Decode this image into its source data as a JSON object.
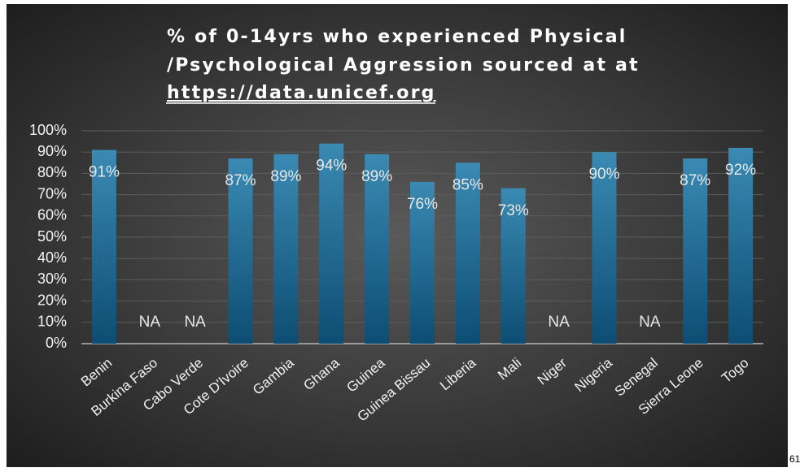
{
  "chart_data": {
    "type": "bar",
    "title": [
      "% of 0-14yrs who experienced Physical",
      "/Psychological Aggression sourced at at",
      "https://data.unicef.org"
    ],
    "categories": [
      "Benin",
      "Burkina Faso",
      "Cabo Verde",
      "Cote D'Ivoire",
      "Gambia",
      "Ghana",
      "Guinea",
      "Guinea Bissau",
      "Liberia",
      "Mali",
      "Niger",
      "Nigeria",
      "Senegal",
      "Sierra Leone",
      "Togo"
    ],
    "values": [
      91,
      null,
      null,
      87,
      89,
      94,
      89,
      76,
      85,
      73,
      null,
      90,
      null,
      87,
      92
    ],
    "value_labels": [
      "91%",
      "NA",
      "NA",
      "87%",
      "89%",
      "94%",
      "89%",
      "76%",
      "85%",
      "73%",
      "NA",
      "90%",
      "NA",
      "87%",
      "92%"
    ],
    "color": "#1f6f98",
    "ylim": [
      0,
      100
    ],
    "yticks": [
      {
        "value": 0,
        "label": "0%"
      },
      {
        "value": 10,
        "label": "10%"
      },
      {
        "value": 20,
        "label": "20%"
      },
      {
        "value": 30,
        "label": "30%"
      },
      {
        "value": 40,
        "label": "40%"
      },
      {
        "value": 50,
        "label": "50%"
      },
      {
        "value": 60,
        "label": "60%"
      },
      {
        "value": 70,
        "label": "70%"
      },
      {
        "value": 80,
        "label": "80%"
      },
      {
        "value": 90,
        "label": "90%"
      },
      {
        "value": 100,
        "label": "100%"
      }
    ],
    "grid": true
  },
  "side_note": "61"
}
